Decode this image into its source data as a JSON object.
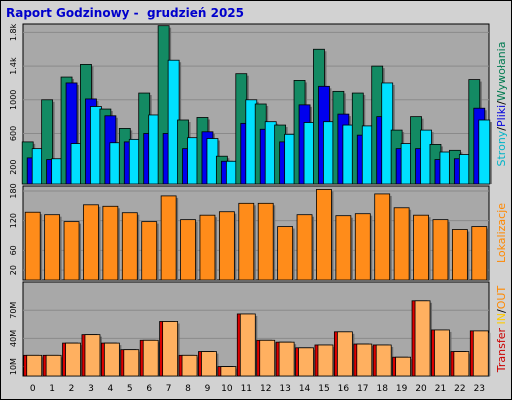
{
  "title": "Raport Godzinowy -  grudzień 2025",
  "chart_data": {
    "type": "bar",
    "categories": [
      "0",
      "1",
      "2",
      "3",
      "4",
      "5",
      "6",
      "7",
      "8",
      "9",
      "10",
      "11",
      "12",
      "13",
      "14",
      "15",
      "16",
      "17",
      "18",
      "19",
      "20",
      "21",
      "22",
      "23"
    ],
    "panels": [
      {
        "id": "pages",
        "ylim": [
          0,
          1900
        ],
        "yticks": [
          200,
          600,
          1000,
          "1.4k",
          "1.8k"
        ],
        "ytick_values": [
          200,
          600,
          1000,
          1400,
          1800
        ],
        "right_label_parts": [
          {
            "text": "Strony",
            "color": "#00b4c8"
          },
          {
            "text": "/",
            "color": "#000000"
          },
          {
            "text": "Pliki",
            "color": "#0000dd"
          },
          {
            "text": "/",
            "color": "#000000"
          },
          {
            "text": "Wywołania",
            "color": "#007a50"
          }
        ],
        "series": [
          {
            "color": "#138a63",
            "values": [
              500,
              1000,
              1270,
              1420,
              890,
              660,
              1080,
              1880,
              760,
              790,
              330,
              1310,
              950,
              700,
              1230,
              1600,
              1100,
              1080,
              1400,
              640,
              800,
              470,
              400,
              1240
            ]
          },
          {
            "color": "#0000ee",
            "values": [
              310,
              290,
              1200,
              1010,
              810,
              500,
              600,
              600,
              420,
              620,
              270,
              720,
              650,
              500,
              940,
              1160,
              830,
              580,
              800,
              420,
              420,
              290,
              300,
              900
            ]
          },
          {
            "color": "#00e0ff",
            "values": [
              420,
              300,
              480,
              920,
              490,
              530,
              820,
              1470,
              550,
              540,
              270,
              1000,
              740,
              590,
              730,
              740,
              700,
              690,
              1200,
              480,
              640,
              380,
              350,
              760
            ]
          }
        ]
      },
      {
        "id": "visits",
        "ylim": [
          0,
          190
        ],
        "yticks": [
          20,
          60,
          120,
          180
        ],
        "ytick_values": [
          20,
          60,
          120,
          180
        ],
        "right_label_parts": [
          {
            "text": "Lokalizacje",
            "color": "#ff8800"
          }
        ],
        "series": [
          {
            "color": "#ff8c1a",
            "values": [
              137,
              132,
              118,
              152,
              149,
              136,
              118,
              170,
              122,
              131,
              138,
              155,
              155,
              108,
              132,
              183,
              130,
              134,
              174,
              146,
              131,
              122,
              102,
              108
            ]
          }
        ]
      },
      {
        "id": "transfer",
        "ylim": [
          0,
          100
        ],
        "yticks": [
          "10M",
          "40M",
          "70M"
        ],
        "ytick_values": [
          10,
          40,
          70
        ],
        "right_label_parts": [
          {
            "text": "Transfer",
            "color": "#cc0000"
          },
          {
            "text": "  ",
            "color": "#000000"
          },
          {
            "text": "IN",
            "color": "#ffcc00"
          },
          {
            "text": "/",
            "color": "#000000"
          },
          {
            "text": "OUT",
            "color": "#ff8800"
          }
        ],
        "series": [
          {
            "color": "#dd0000",
            "values": [
              22,
              22,
              35,
              44,
              35,
              28,
              38,
              58,
              22,
              26,
              10,
              66,
              38,
              36,
              30,
              33,
              47,
              34,
              33,
              20,
              80,
              49,
              26,
              48
            ]
          },
          {
            "color": "#ffb060",
            "values": [
              22,
              22,
              35,
              44,
              35,
              28,
              38,
              58,
              22,
              26,
              10,
              66,
              38,
              36,
              30,
              33,
              47,
              34,
              33,
              20,
              80,
              49,
              26,
              48
            ]
          }
        ]
      }
    ]
  }
}
